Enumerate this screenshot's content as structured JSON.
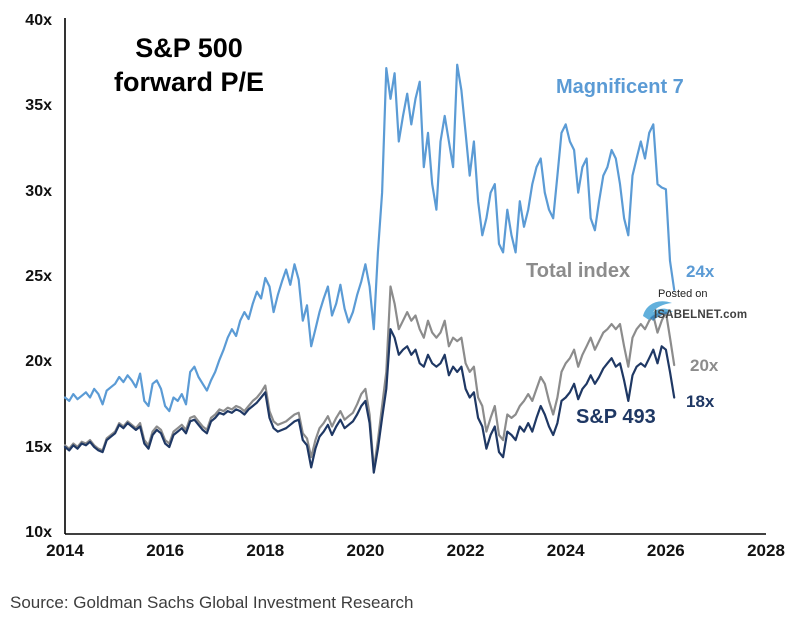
{
  "chart_data": {
    "type": "line",
    "title": "S&P 500 forward P/E",
    "xlabel": "",
    "ylabel": "",
    "grid": false,
    "legend": "inline-labels",
    "x_start": 2014.0,
    "x_step": 0.083333,
    "xlim": [
      2014,
      2028
    ],
    "ylim": [
      10,
      40
    ],
    "x_tick_values": [
      2014,
      2016,
      2018,
      2020,
      2022,
      2024,
      2026,
      2028
    ],
    "x_tick_labels": [
      "2014",
      "2016",
      "2018",
      "2020",
      "2022",
      "2024",
      "2026",
      "2028"
    ],
    "y_tick_values": [
      40,
      35,
      30,
      25,
      20,
      15,
      10
    ],
    "y_tick_labels": [
      "40x",
      "35x",
      "30x",
      "25x",
      "20x",
      "15x",
      "10x"
    ],
    "series": [
      {
        "name": "Magnificent 7",
        "color": "#5B9BD5",
        "end_label": "24x",
        "values": [
          18.0,
          17.8,
          18.2,
          17.9,
          18.1,
          18.3,
          18.0,
          18.5,
          18.2,
          17.6,
          18.4,
          18.6,
          18.8,
          19.2,
          18.9,
          19.3,
          19.0,
          18.6,
          19.4,
          17.8,
          17.5,
          18.8,
          19.0,
          18.5,
          17.5,
          17.2,
          18.0,
          17.8,
          18.2,
          17.6,
          19.5,
          19.8,
          19.2,
          18.8,
          18.4,
          19.0,
          19.5,
          20.2,
          20.8,
          21.5,
          22.0,
          21.6,
          22.5,
          23.0,
          22.6,
          23.5,
          24.2,
          23.8,
          25.0,
          24.5,
          23.0,
          24.0,
          24.8,
          25.5,
          24.6,
          25.8,
          24.9,
          22.5,
          23.4,
          21.0,
          22.0,
          23.0,
          23.8,
          24.5,
          22.8,
          23.5,
          24.6,
          23.2,
          22.4,
          23.0,
          24.0,
          24.8,
          25.8,
          24.5,
          22.0,
          26.5,
          30.0,
          37.3,
          35.5,
          37.0,
          33.0,
          34.5,
          35.8,
          34.0,
          35.5,
          36.5,
          31.5,
          33.5,
          30.5,
          29.0,
          33.0,
          34.5,
          33.0,
          31.5,
          37.5,
          36.0,
          33.5,
          31.0,
          33.0,
          29.5,
          27.5,
          28.5,
          30.0,
          30.5,
          27.0,
          26.5,
          29.0,
          27.5,
          26.5,
          29.5,
          28.0,
          29.0,
          30.5,
          31.5,
          32.0,
          30.0,
          29.0,
          28.5,
          31.0,
          33.5,
          34.0,
          33.0,
          32.5,
          30.0,
          31.5,
          32.0,
          28.5,
          27.8,
          29.5,
          31.0,
          31.5,
          32.5,
          32.0,
          30.5,
          28.5,
          27.5,
          31.0,
          32.0,
          33.0,
          32.0,
          33.5,
          34.0,
          30.5,
          30.3,
          30.2,
          26.0,
          24.3
        ]
      },
      {
        "name": "Total index",
        "color": "#8C8C8C",
        "end_label": "20x",
        "values": [
          15.2,
          15.0,
          15.3,
          15.1,
          15.4,
          15.3,
          15.5,
          15.2,
          15.0,
          14.9,
          15.6,
          15.8,
          16.0,
          16.5,
          16.3,
          16.6,
          16.4,
          16.2,
          16.5,
          15.5,
          15.2,
          16.0,
          16.3,
          16.1,
          15.5,
          15.3,
          16.0,
          16.2,
          16.4,
          16.1,
          16.8,
          16.9,
          16.6,
          16.3,
          16.1,
          16.8,
          17.0,
          17.3,
          17.2,
          17.4,
          17.3,
          17.5,
          17.4,
          17.2,
          17.5,
          17.8,
          18.0,
          18.3,
          18.7,
          17.2,
          16.6,
          16.4,
          16.5,
          16.6,
          16.8,
          17.0,
          17.1,
          15.9,
          15.6,
          14.5,
          15.5,
          16.2,
          16.5,
          16.9,
          16.3,
          16.8,
          17.2,
          16.7,
          16.9,
          17.1,
          17.6,
          18.2,
          18.5,
          17.0,
          13.8,
          15.5,
          17.5,
          19.5,
          24.5,
          23.5,
          22.0,
          22.5,
          23.0,
          22.5,
          22.8,
          22.0,
          21.5,
          22.5,
          21.8,
          21.5,
          21.8,
          22.5,
          21.0,
          21.5,
          21.3,
          21.5,
          20.0,
          19.5,
          19.8,
          18.0,
          17.5,
          16.0,
          16.8,
          17.5,
          15.8,
          15.5,
          17.0,
          16.8,
          17.0,
          17.5,
          17.8,
          18.2,
          17.8,
          18.5,
          19.2,
          18.8,
          17.8,
          17.0,
          18.0,
          19.5,
          20.0,
          20.3,
          20.8,
          19.8,
          20.5,
          21.0,
          21.5,
          20.8,
          21.3,
          21.8,
          22.0,
          22.3,
          22.0,
          22.3,
          21.0,
          19.8,
          21.5,
          22.0,
          22.3,
          22.0,
          22.5,
          22.8,
          21.8,
          22.5,
          23.0,
          21.5,
          19.9
        ]
      },
      {
        "name": "S&P 493",
        "color": "#1F3864",
        "end_label": "18x",
        "values": [
          15.1,
          14.9,
          15.2,
          15.0,
          15.3,
          15.2,
          15.4,
          15.1,
          14.9,
          14.8,
          15.5,
          15.7,
          15.9,
          16.4,
          16.2,
          16.5,
          16.3,
          16.1,
          16.3,
          15.3,
          15.0,
          15.8,
          16.1,
          15.9,
          15.3,
          15.1,
          15.8,
          16.0,
          16.2,
          15.9,
          16.6,
          16.7,
          16.4,
          16.1,
          15.9,
          16.6,
          16.8,
          17.1,
          17.0,
          17.2,
          17.1,
          17.3,
          17.2,
          17.0,
          17.3,
          17.5,
          17.7,
          18.0,
          18.3,
          16.8,
          16.2,
          16.0,
          16.1,
          16.2,
          16.4,
          16.6,
          16.7,
          15.5,
          15.2,
          13.9,
          15.0,
          15.7,
          16.0,
          16.4,
          15.8,
          16.3,
          16.7,
          16.2,
          16.4,
          16.6,
          17.0,
          17.5,
          17.8,
          16.5,
          13.6,
          15.0,
          16.8,
          18.5,
          22.0,
          21.5,
          20.5,
          20.8,
          21.0,
          20.5,
          20.8,
          20.0,
          19.8,
          20.5,
          20.0,
          19.8,
          20.0,
          20.5,
          19.3,
          19.8,
          19.5,
          19.8,
          18.5,
          18.0,
          18.3,
          16.8,
          16.3,
          15.0,
          15.8,
          16.3,
          14.8,
          14.5,
          16.0,
          15.8,
          15.5,
          16.3,
          16.0,
          16.5,
          16.0,
          16.8,
          17.5,
          17.0,
          16.3,
          15.8,
          16.5,
          17.8,
          18.0,
          18.3,
          18.8,
          17.9,
          18.5,
          18.8,
          19.3,
          18.8,
          19.2,
          19.7,
          20.0,
          20.3,
          19.8,
          20.0,
          19.0,
          17.8,
          19.3,
          19.8,
          20.0,
          19.8,
          20.3,
          20.8,
          20.0,
          21.0,
          20.8,
          19.5,
          18.0
        ]
      }
    ]
  },
  "annotations": {
    "title_line1": "S&P 500",
    "title_line2": "forward P/E",
    "magnificent7_label": "Magnificent 7",
    "total_index_label": "Total index",
    "sp493_label": "S&P 493",
    "mag7_end_value": "24x",
    "total_end_value": "20x",
    "sp493_end_value": "18x"
  },
  "watermark": {
    "posted_on": "Posted on",
    "site": "ISABELNET.com"
  },
  "source_line": "Source: Goldman Sachs Global Investment Research",
  "colors": {
    "magnificent7": "#5B9BD5",
    "total_index": "#8C8C8C",
    "sp493": "#1F3864",
    "axis": "#000000"
  }
}
